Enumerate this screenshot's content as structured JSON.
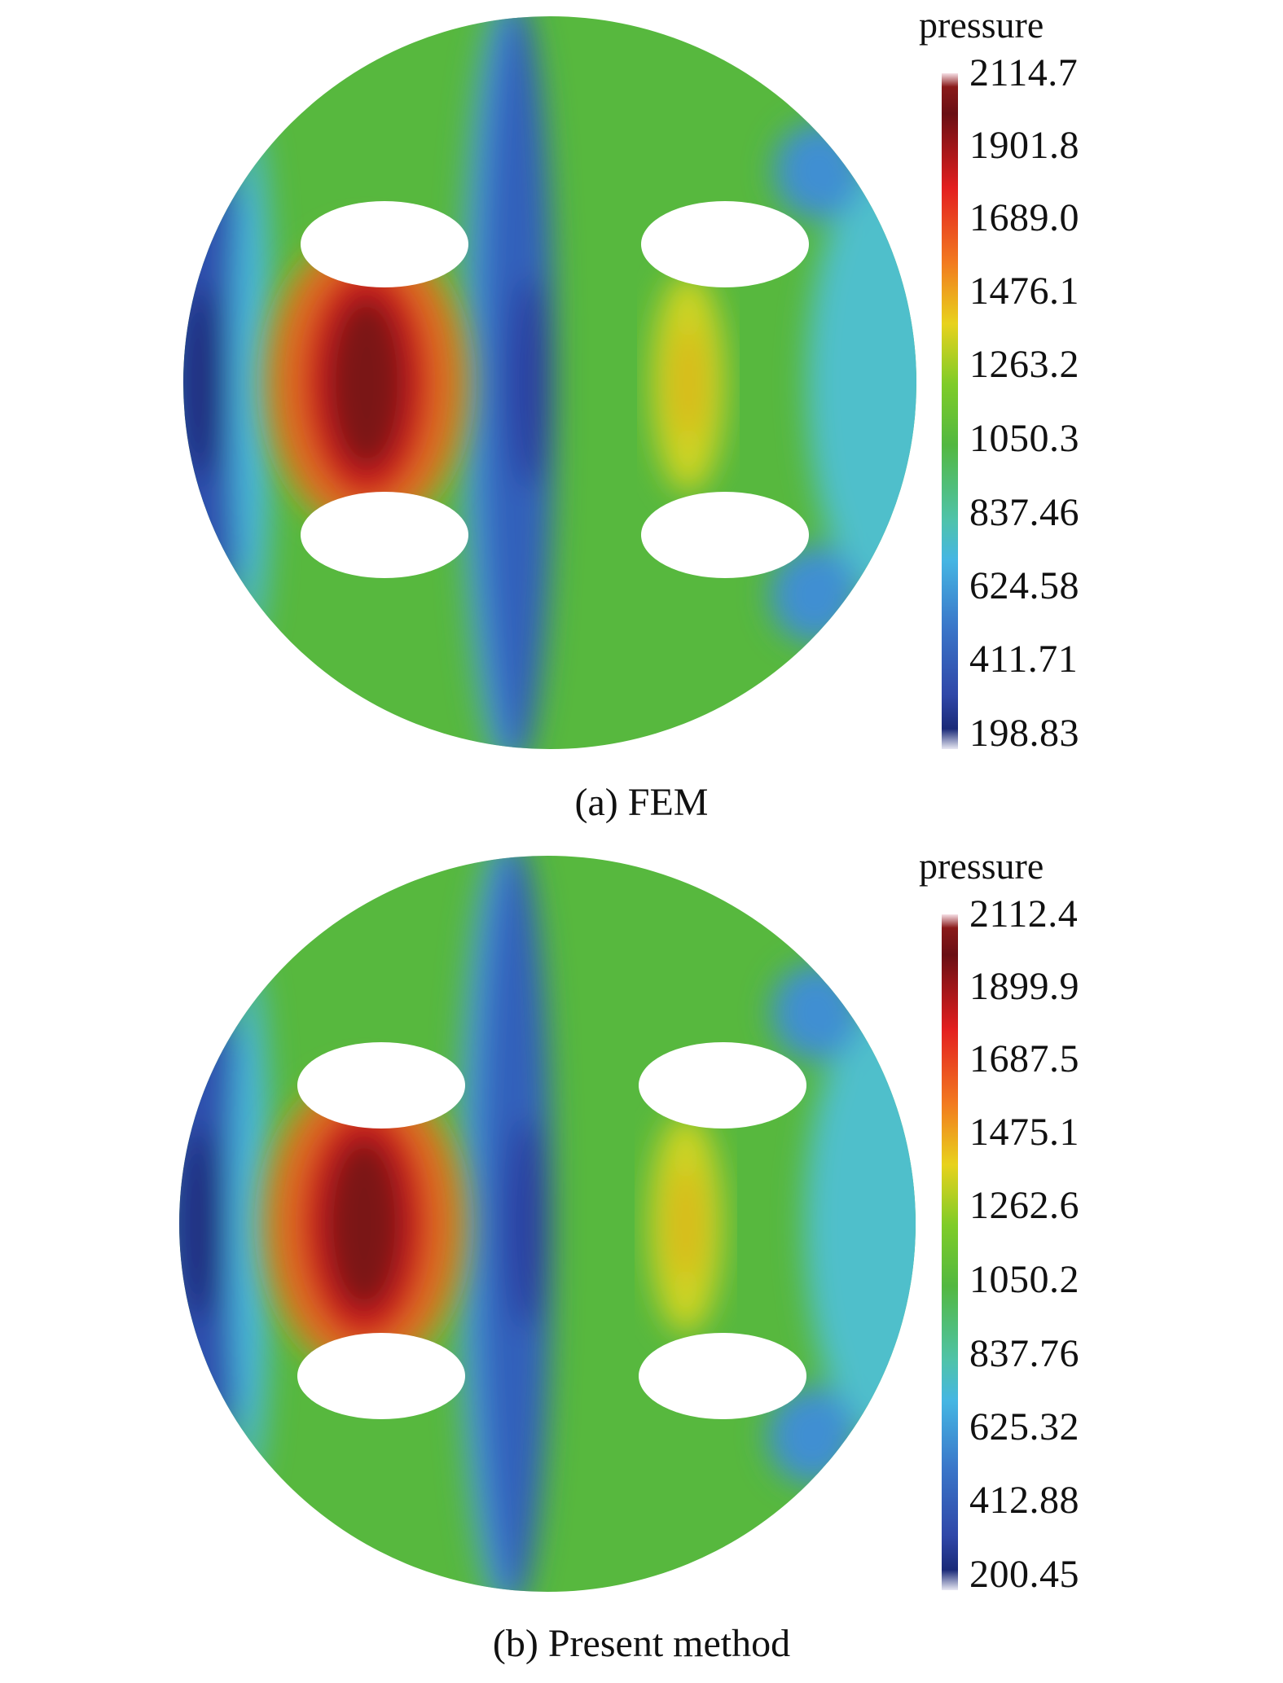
{
  "chart_data": [
    {
      "type": "heatmap",
      "caption": "(a) FEM",
      "colorbar": {
        "title": "pressure",
        "ticks": [
          "2114.7",
          "1901.8",
          "1689.0",
          "1476.1",
          "1263.2",
          "1050.3",
          "837.46",
          "624.58",
          "411.71",
          "198.83"
        ],
        "min": 198.83,
        "max": 2114.7
      },
      "field": {
        "domain": "circular plate with four elliptical holes",
        "features": [
          {
            "region": "left edge",
            "value": 250
          },
          {
            "region": "between left holes",
            "value": 2100
          },
          {
            "region": "central vertical band",
            "value": 450
          },
          {
            "region": "between right holes",
            "value": 1420
          },
          {
            "region": "right edge",
            "value": 820
          }
        ]
      }
    },
    {
      "type": "heatmap",
      "caption": "(b) Present method",
      "colorbar": {
        "title": "pressure",
        "ticks": [
          "2112.4",
          "1899.9",
          "1687.5",
          "1475.1",
          "1262.6",
          "1050.2",
          "837.76",
          "625.32",
          "412.88",
          "200.45"
        ],
        "min": 200.45,
        "max": 2112.4
      },
      "field": {
        "domain": "circular plate with four elliptical holes",
        "features": [
          {
            "region": "left edge",
            "value": 255
          },
          {
            "region": "between left holes",
            "value": 2095
          },
          {
            "region": "central vertical band",
            "value": 455
          },
          {
            "region": "between right holes",
            "value": 1410
          },
          {
            "region": "right edge",
            "value": 825
          }
        ]
      }
    }
  ]
}
